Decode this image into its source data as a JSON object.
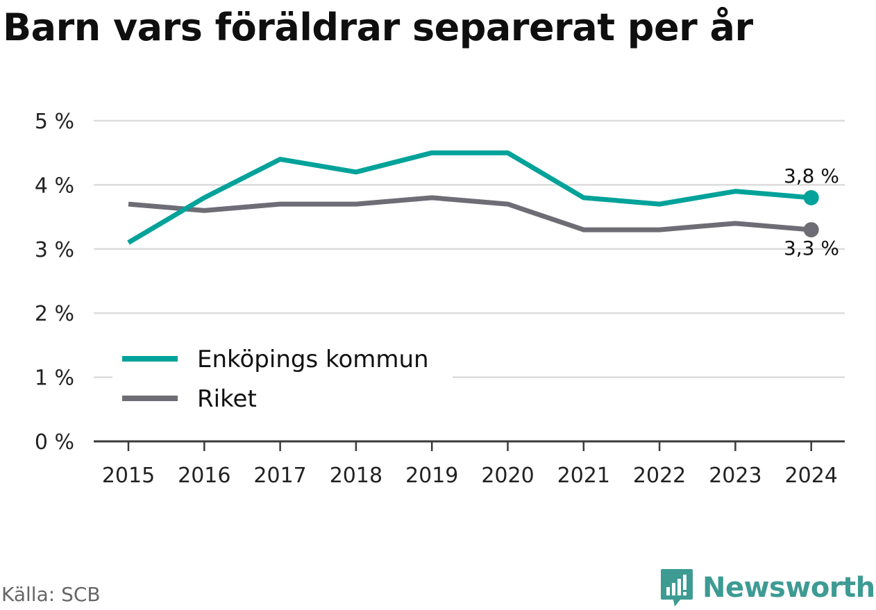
{
  "title": "Barn vars föräldrar separerat per år",
  "source": "Källa: SCB",
  "brand": {
    "name": "Newsworthy",
    "icon": "newsworthy-logo-icon",
    "color": "#3d9b93"
  },
  "chart_data": {
    "type": "line",
    "title": "Barn vars föräldrar separerat per år",
    "xlabel": "",
    "ylabel": "",
    "categories": [
      "2015",
      "2016",
      "2017",
      "2018",
      "2019",
      "2020",
      "2021",
      "2022",
      "2023",
      "2024"
    ],
    "ylim": [
      0,
      5
    ],
    "yticks": [
      0,
      1,
      2,
      3,
      4,
      5
    ],
    "ytick_labels": [
      "0 %",
      "1 %",
      "2 %",
      "3 %",
      "4 %",
      "5 %"
    ],
    "grid": true,
    "legend_position": "bottom-left",
    "series": [
      {
        "name": "Enköpings kommun",
        "color": "#00a29a",
        "values": [
          3.1,
          3.8,
          4.4,
          4.2,
          4.5,
          4.5,
          3.8,
          3.7,
          3.9,
          3.8
        ],
        "end_label": "3,8 %"
      },
      {
        "name": "Riket",
        "color": "#6e6d76",
        "values": [
          3.7,
          3.6,
          3.7,
          3.7,
          3.8,
          3.7,
          3.3,
          3.3,
          3.4,
          3.3
        ],
        "end_label": "3,3 %"
      }
    ]
  }
}
